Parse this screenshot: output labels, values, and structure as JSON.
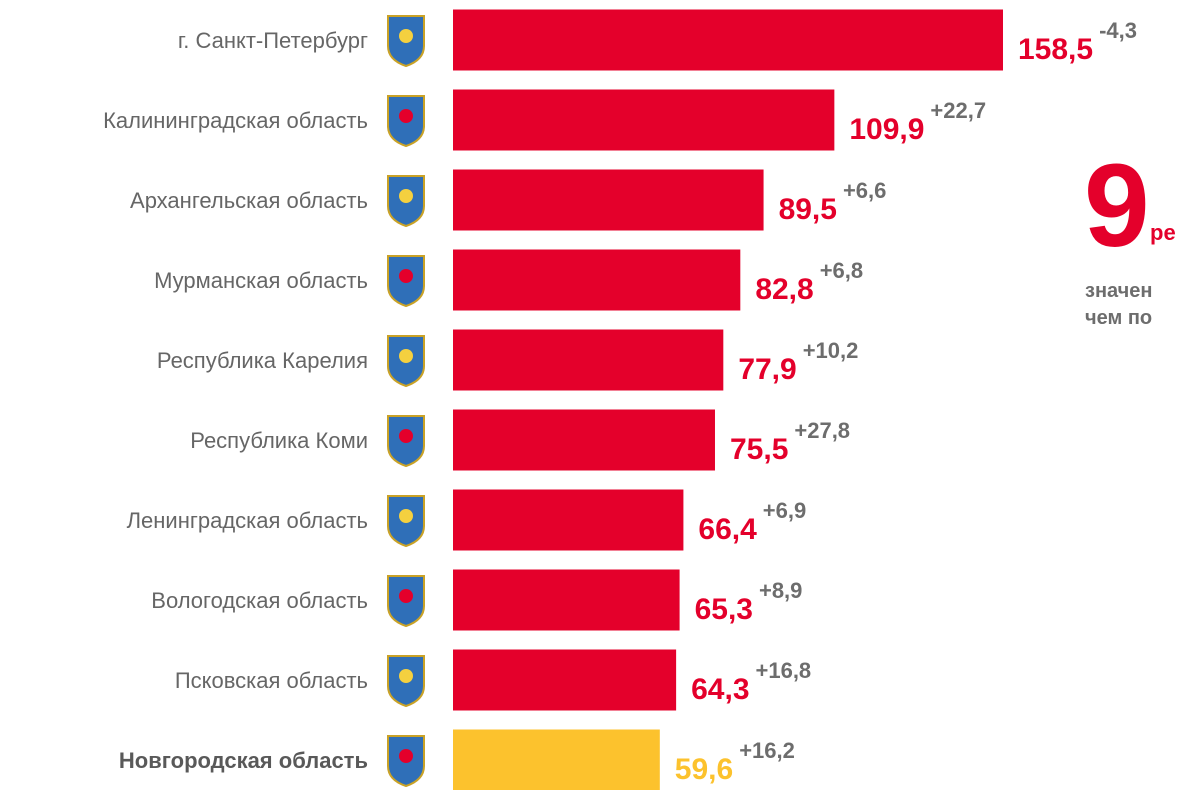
{
  "chart_data": {
    "type": "bar",
    "orientation": "horizontal",
    "categories": [
      "г. Санкт-Петербург",
      "Калининградская область",
      "Архангельская область",
      "Мурманская область",
      "Республика Карелия",
      "Республика Коми",
      "Ленинградская область",
      "Вологодская область",
      "Псковская область",
      "Новгородская область"
    ],
    "values": [
      158.5,
      109.9,
      89.5,
      82.8,
      77.9,
      75.5,
      66.4,
      65.3,
      64.3,
      59.6
    ],
    "value_labels": [
      "158,5",
      "109,9",
      "89,5",
      "82,8",
      "77,9",
      "75,5",
      "66,4",
      "65,3",
      "64,3",
      "59,6"
    ],
    "changes": [
      -4.3,
      22.7,
      6.6,
      6.8,
      10.2,
      27.8,
      6.9,
      8.9,
      16.8,
      16.2
    ],
    "change_labels": [
      "-4,3",
      "+22,7",
      "+6,6",
      "+6,8",
      "+10,2",
      "+27,8",
      "+6,9",
      "+8,9",
      "+16,8",
      "+16,2"
    ],
    "colors": [
      "#e4002b",
      "#e4002b",
      "#e4002b",
      "#e4002b",
      "#e4002b",
      "#e4002b",
      "#e4002b",
      "#e4002b",
      "#e4002b",
      "#fcc22d"
    ],
    "highlight": 9,
    "annotations": {
      "big_number": "9",
      "big_suffix": "ре",
      "line1": "значен",
      "line2": "чем по"
    }
  }
}
